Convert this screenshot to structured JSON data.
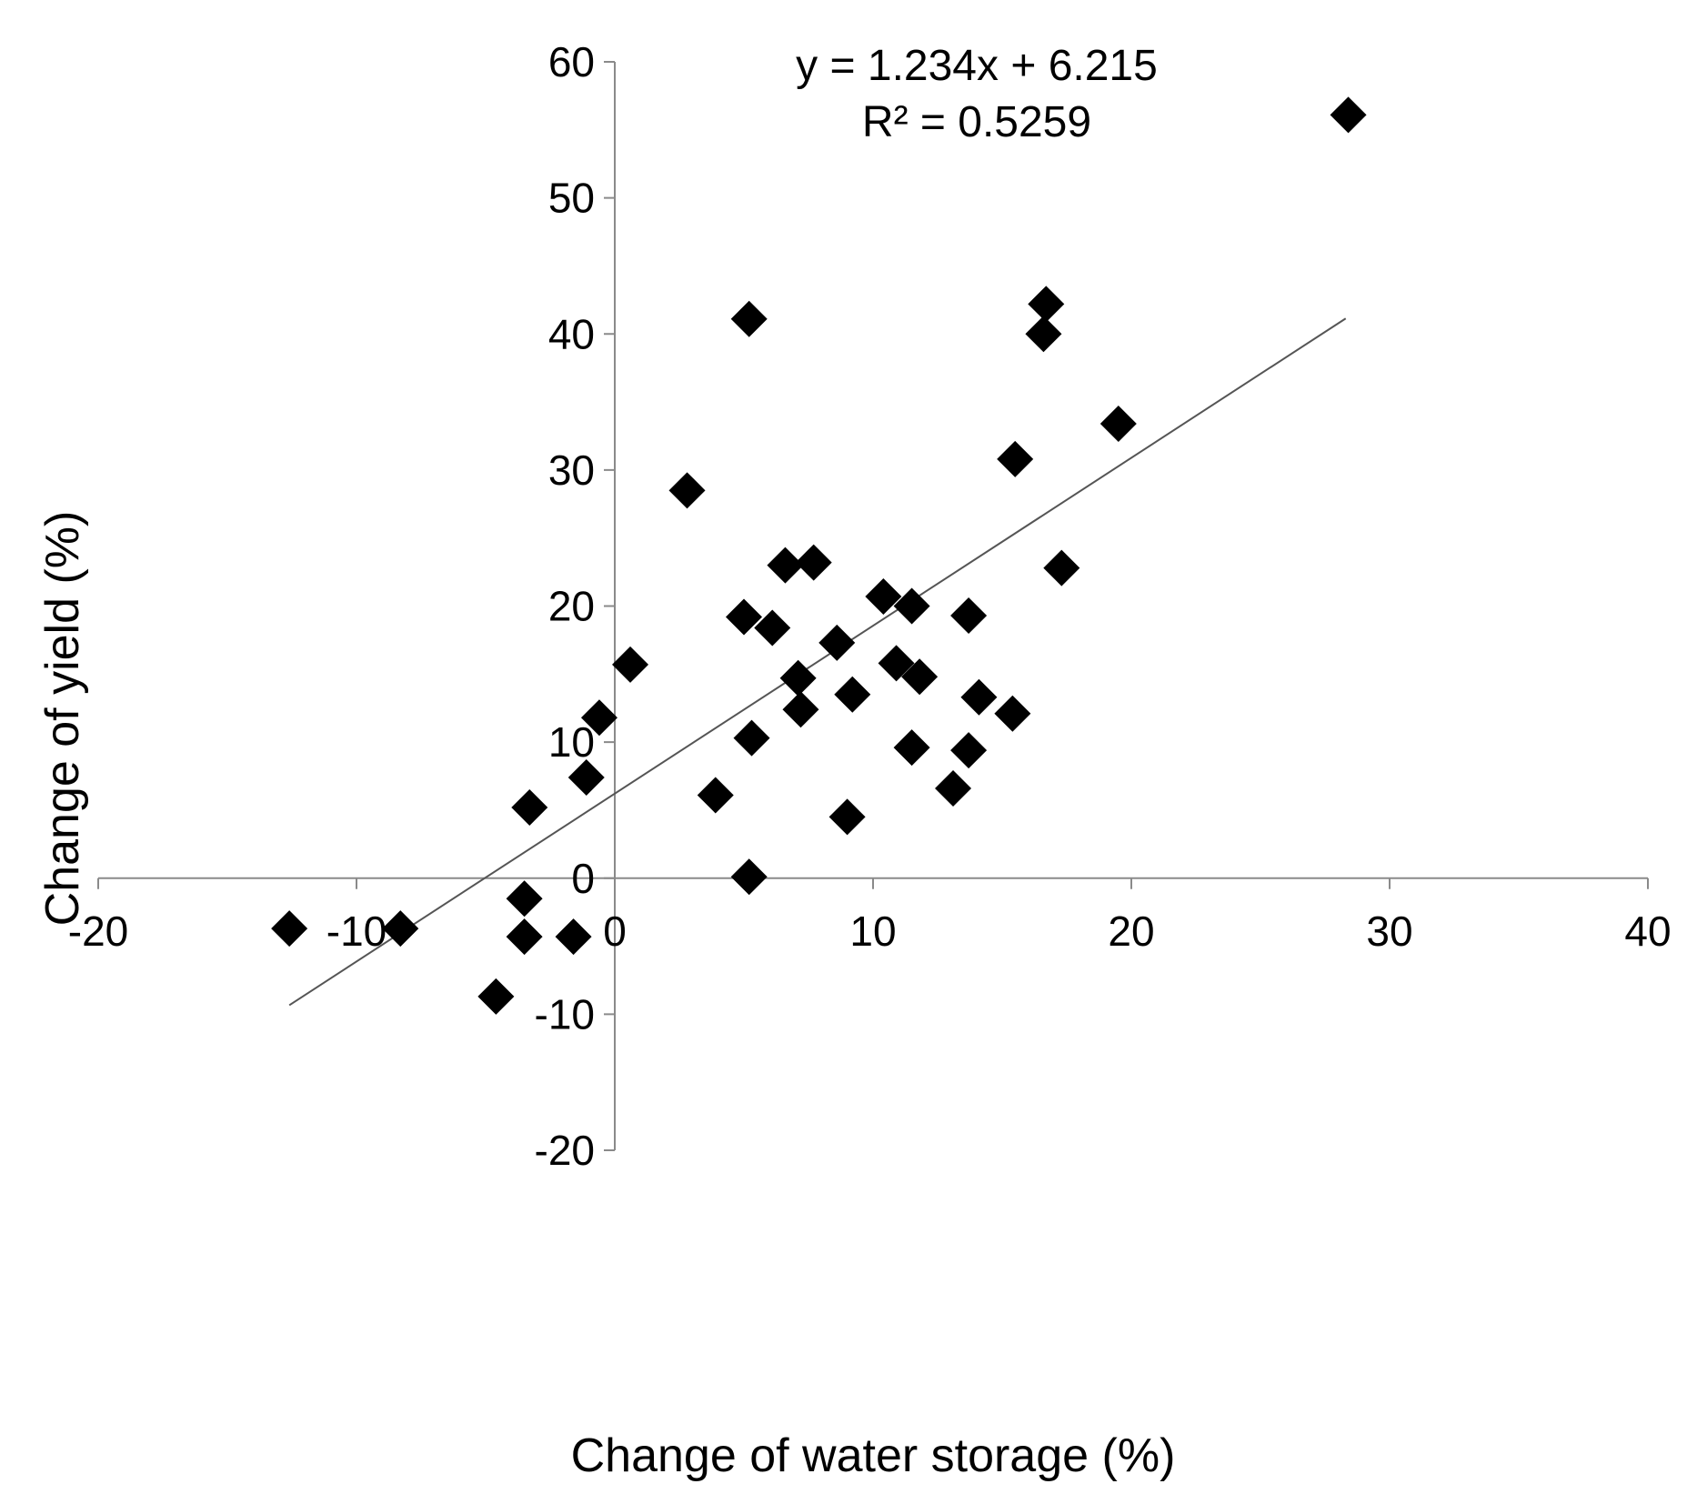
{
  "chart_data": {
    "type": "scatter",
    "xlabel": "Change of water storage (%)",
    "ylabel": "Change of yield (%)",
    "xlim": [
      -20,
      40
    ],
    "ylim": [
      -20,
      60
    ],
    "x_ticks": [
      -20,
      -10,
      0,
      10,
      20,
      30,
      40
    ],
    "y_ticks": [
      -20,
      -10,
      0,
      10,
      20,
      30,
      40,
      50,
      60
    ],
    "x_tick_labels": [
      "-20",
      "-10",
      "0",
      "10",
      "20",
      "30",
      "40"
    ],
    "y_tick_labels": [
      "-20",
      "-10",
      "0",
      "10",
      "20",
      "30",
      "40",
      "50",
      "60"
    ],
    "equation_text": "y = 1.234x + 6.215",
    "r2_text": "R² = 0.5259",
    "trendline": {
      "slope": 1.234,
      "intercept": 6.215,
      "x_range": [
        -12.6,
        28.3
      ]
    },
    "marker": "diamond",
    "colors": {
      "marker": "#000000",
      "trendline": "#555555",
      "axis": "#8a8a8a"
    },
    "points": [
      {
        "x": -12.6,
        "y": -3.7
      },
      {
        "x": -8.3,
        "y": -3.7
      },
      {
        "x": -4.6,
        "y": -8.7
      },
      {
        "x": -3.5,
        "y": -1.5
      },
      {
        "x": -3.5,
        "y": -4.3
      },
      {
        "x": -1.6,
        "y": -4.3
      },
      {
        "x": -3.3,
        "y": 5.2
      },
      {
        "x": -1.1,
        "y": 7.4
      },
      {
        "x": -0.6,
        "y": 11.8
      },
      {
        "x": 0.6,
        "y": 15.7
      },
      {
        "x": 2.8,
        "y": 28.5
      },
      {
        "x": 3.9,
        "y": 6.1
      },
      {
        "x": 5.0,
        "y": 19.2
      },
      {
        "x": 5.2,
        "y": 41.1
      },
      {
        "x": 5.2,
        "y": 0.1
      },
      {
        "x": 5.3,
        "y": 10.3
      },
      {
        "x": 6.1,
        "y": 18.4
      },
      {
        "x": 6.6,
        "y": 23.0
      },
      {
        "x": 7.1,
        "y": 14.7
      },
      {
        "x": 7.2,
        "y": 12.4
      },
      {
        "x": 7.7,
        "y": 23.2
      },
      {
        "x": 8.6,
        "y": 17.3
      },
      {
        "x": 9.0,
        "y": 4.5
      },
      {
        "x": 9.2,
        "y": 13.5
      },
      {
        "x": 10.4,
        "y": 20.7
      },
      {
        "x": 10.9,
        "y": 15.8
      },
      {
        "x": 11.5,
        "y": 20.0
      },
      {
        "x": 11.5,
        "y": 9.6
      },
      {
        "x": 11.8,
        "y": 14.8
      },
      {
        "x": 13.1,
        "y": 6.6
      },
      {
        "x": 13.7,
        "y": 19.3
      },
      {
        "x": 13.7,
        "y": 9.4
      },
      {
        "x": 14.1,
        "y": 13.3
      },
      {
        "x": 15.4,
        "y": 12.1
      },
      {
        "x": 15.5,
        "y": 30.8
      },
      {
        "x": 16.6,
        "y": 40.0
      },
      {
        "x": 16.7,
        "y": 42.2
      },
      {
        "x": 17.3,
        "y": 22.8
      },
      {
        "x": 19.5,
        "y": 33.4
      },
      {
        "x": 28.4,
        "y": 56.1
      }
    ]
  }
}
